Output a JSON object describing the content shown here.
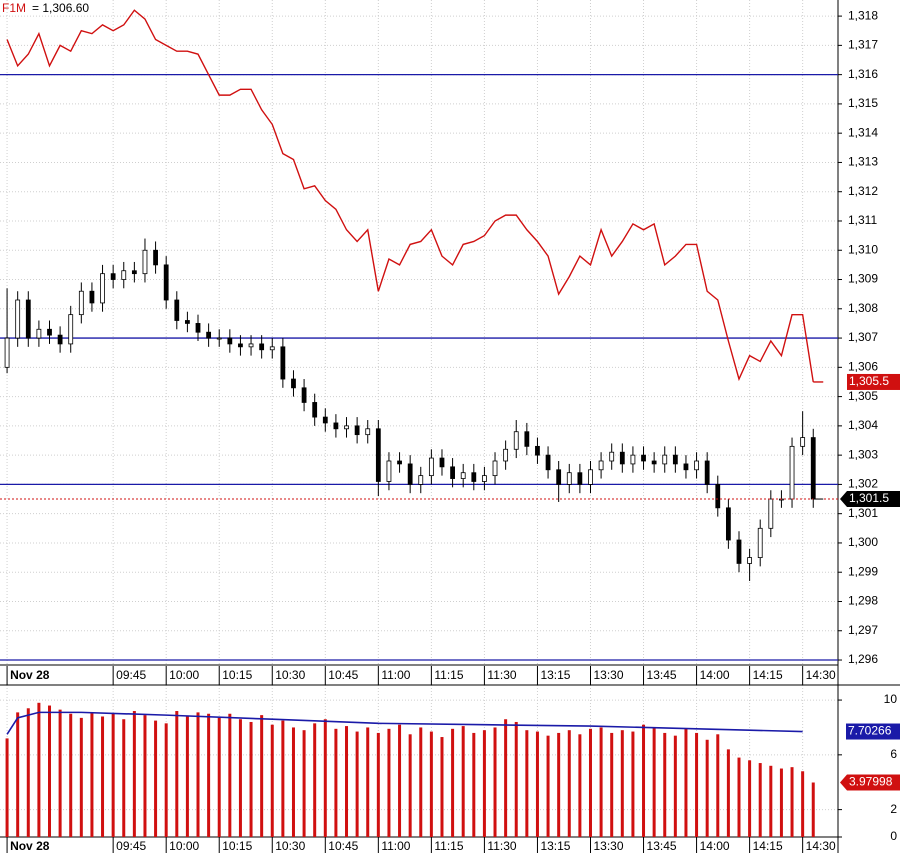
{
  "chart_data": [
    {
      "type": "candlestick",
      "legend_label": "= 1,306.60",
      "x": [
        0,
        3,
        6,
        9,
        12,
        15,
        18,
        21,
        24,
        27,
        30,
        33,
        36,
        39,
        42,
        45,
        48,
        51,
        54,
        57,
        60,
        63,
        66,
        69,
        72,
        75,
        78,
        81,
        84,
        87,
        90,
        93,
        96,
        99,
        102,
        105,
        108,
        111,
        114,
        117,
        120,
        123,
        126,
        129,
        132,
        135,
        138,
        141,
        144,
        147,
        150,
        153,
        156,
        159,
        162,
        165,
        168,
        171,
        174,
        177,
        180,
        183,
        186,
        189,
        192,
        195,
        198,
        201,
        204,
        207,
        210,
        213,
        216,
        219,
        222,
        225,
        228
      ],
      "open": [
        1306.0,
        1307.0,
        1308.3,
        1307.0,
        1307.3,
        1307.1,
        1306.8,
        1307.8,
        1308.6,
        1308.2,
        1309.2,
        1309.0,
        1309.3,
        1309.2,
        1310.0,
        1309.5,
        1308.3,
        1307.6,
        1307.5,
        1307.2,
        1307.0,
        1307.0,
        1306.8,
        1306.7,
        1306.8,
        1306.6,
        1306.7,
        1305.6,
        1305.3,
        1304.8,
        1304.3,
        1304.1,
        1303.9,
        1304.0,
        1303.7,
        1303.9,
        1302.1,
        1302.8,
        1302.7,
        1302.0,
        1302.3,
        1302.9,
        1302.6,
        1302.2,
        1302.4,
        1302.1,
        1302.3,
        1302.8,
        1303.2,
        1303.8,
        1303.3,
        1303.0,
        1302.5,
        1302.0,
        1302.4,
        1302.0,
        1302.5,
        1302.8,
        1303.1,
        1302.7,
        1303.0,
        1302.8,
        1302.7,
        1303.0,
        1302.7,
        1302.5,
        1302.8,
        1302.0,
        1301.2,
        1300.1,
        1299.3,
        1299.5,
        1300.5,
        1301.5,
        1301.5,
        1303.3,
        1303.6
      ],
      "high": [
        1308.7,
        1308.6,
        1308.6,
        1307.6,
        1307.6,
        1307.4,
        1308.1,
        1308.9,
        1308.9,
        1309.5,
        1309.5,
        1309.6,
        1309.6,
        1310.4,
        1310.3,
        1309.8,
        1308.6,
        1307.9,
        1307.8,
        1307.5,
        1307.3,
        1307.3,
        1307.1,
        1307.1,
        1307.1,
        1307.0,
        1307.0,
        1305.9,
        1305.6,
        1305.1,
        1304.6,
        1304.4,
        1304.3,
        1304.3,
        1304.2,
        1304.2,
        1303.1,
        1303.1,
        1303.0,
        1302.6,
        1303.2,
        1303.2,
        1302.9,
        1302.7,
        1302.7,
        1302.6,
        1303.1,
        1303.5,
        1304.2,
        1304.1,
        1303.6,
        1303.3,
        1302.8,
        1302.7,
        1302.7,
        1302.8,
        1303.1,
        1303.4,
        1303.4,
        1303.3,
        1303.3,
        1303.1,
        1303.3,
        1303.3,
        1303.0,
        1303.1,
        1303.1,
        1302.3,
        1301.5,
        1300.4,
        1299.8,
        1300.8,
        1301.8,
        1301.8,
        1303.6,
        1304.5,
        1303.9
      ],
      "low": [
        1305.8,
        1306.7,
        1306.7,
        1306.7,
        1306.8,
        1306.5,
        1306.5,
        1307.5,
        1307.9,
        1307.9,
        1308.7,
        1308.7,
        1308.9,
        1308.9,
        1309.2,
        1308.0,
        1307.3,
        1307.2,
        1306.9,
        1306.7,
        1306.7,
        1306.5,
        1306.4,
        1306.4,
        1306.3,
        1306.3,
        1305.3,
        1305.0,
        1304.5,
        1304.0,
        1303.8,
        1303.6,
        1303.6,
        1303.4,
        1303.4,
        1301.6,
        1301.8,
        1302.4,
        1301.7,
        1301.7,
        1302.0,
        1302.3,
        1301.9,
        1301.9,
        1301.8,
        1301.8,
        1302.0,
        1302.5,
        1302.9,
        1303.0,
        1302.7,
        1302.2,
        1301.4,
        1301.7,
        1301.7,
        1301.7,
        1302.2,
        1302.5,
        1302.4,
        1302.4,
        1302.5,
        1302.4,
        1302.4,
        1302.4,
        1302.2,
        1302.2,
        1301.7,
        1300.9,
        1299.8,
        1299.0,
        1298.7,
        1299.2,
        1300.2,
        1301.2,
        1301.2,
        1303.0,
        1301.2
      ],
      "close": [
        1307.0,
        1308.3,
        1307.0,
        1307.3,
        1307.1,
        1306.8,
        1307.8,
        1308.6,
        1308.2,
        1309.2,
        1309.0,
        1309.3,
        1309.2,
        1310.0,
        1309.5,
        1308.3,
        1307.6,
        1307.5,
        1307.2,
        1307.0,
        1307.0,
        1306.8,
        1306.7,
        1306.8,
        1306.6,
        1306.7,
        1305.6,
        1305.3,
        1304.8,
        1304.3,
        1304.1,
        1303.9,
        1304.0,
        1303.7,
        1303.9,
        1302.1,
        1302.8,
        1302.7,
        1302.0,
        1302.3,
        1302.9,
        1302.6,
        1302.2,
        1302.4,
        1302.1,
        1302.3,
        1302.8,
        1303.2,
        1303.8,
        1303.3,
        1303.0,
        1302.5,
        1302.0,
        1302.4,
        1302.0,
        1302.5,
        1302.8,
        1303.1,
        1302.7,
        1303.0,
        1302.8,
        1302.7,
        1303.0,
        1302.7,
        1302.5,
        1302.8,
        1302.0,
        1301.2,
        1300.1,
        1299.3,
        1299.5,
        1300.5,
        1301.5,
        1301.5,
        1303.3,
        1303.6,
        1301.5
      ],
      "close_last_label": "1,301.5",
      "series": [
        {
          "name": "F1M",
          "color": "#d01010",
          "last_label": "1,305.5",
          "values": [
            1317.2,
            1316.3,
            1316.7,
            1317.4,
            1316.3,
            1317.0,
            1316.8,
            1317.5,
            1317.4,
            1317.7,
            1317.5,
            1317.7,
            1318.2,
            1317.9,
            1317.2,
            1317.0,
            1316.8,
            1316.8,
            1316.7,
            1316.0,
            1315.3,
            1315.3,
            1315.5,
            1315.5,
            1314.8,
            1314.3,
            1313.3,
            1313.1,
            1312.1,
            1312.2,
            1311.7,
            1311.4,
            1310.7,
            1310.3,
            1310.7,
            1308.6,
            1309.7,
            1309.5,
            1310.2,
            1310.3,
            1310.7,
            1309.8,
            1309.5,
            1310.2,
            1310.3,
            1310.5,
            1311.0,
            1311.2,
            1311.2,
            1310.7,
            1310.3,
            1309.8,
            1308.5,
            1309.1,
            1309.8,
            1309.5,
            1310.7,
            1309.8,
            1310.3,
            1310.9,
            1310.7,
            1310.9,
            1309.5,
            1309.8,
            1310.2,
            1310.2,
            1308.6,
            1308.3,
            1306.9,
            1305.6,
            1306.4,
            1306.2,
            1306.9,
            1306.4,
            1307.8,
            1307.8,
            1305.5
          ]
        }
      ],
      "hlines": [
        1316,
        1307,
        1302,
        1296
      ],
      "hline_color": "#1a1aa8",
      "xlim": [
        -2,
        235
      ],
      "xticks": [
        {
          "value": 0,
          "label": "Nov 28"
        },
        {
          "value": 30,
          "label": "09:45"
        },
        {
          "value": 45,
          "label": "10:00"
        },
        {
          "value": 60,
          "label": "10:15"
        },
        {
          "value": 75,
          "label": "10:30"
        },
        {
          "value": 90,
          "label": "10:45"
        },
        {
          "value": 105,
          "label": "11:00"
        },
        {
          "value": 120,
          "label": "11:15"
        },
        {
          "value": 135,
          "label": "11:30"
        },
        {
          "value": 150,
          "label": "13:15"
        },
        {
          "value": 165,
          "label": "13:30"
        },
        {
          "value": 180,
          "label": "13:45"
        },
        {
          "value": 195,
          "label": "14:00"
        },
        {
          "value": 210,
          "label": "14:15"
        },
        {
          "value": 225,
          "label": "14:30"
        }
      ],
      "ylim": [
        1295.83,
        1318.55
      ],
      "yticks": [
        {
          "value": 1296,
          "label": "1,296"
        },
        {
          "value": 1297,
          "label": "1,297"
        },
        {
          "value": 1298,
          "label": "1,298"
        },
        {
          "value": 1299,
          "label": "1,299"
        },
        {
          "value": 1300,
          "label": "1,300"
        },
        {
          "value": 1301,
          "label": "1,301"
        },
        {
          "value": 1302,
          "label": "1,302"
        },
        {
          "value": 1303,
          "label": "1,303"
        },
        {
          "value": 1304,
          "label": "1,304"
        },
        {
          "value": 1305,
          "label": "1,305"
        },
        {
          "value": 1306,
          "label": "1,306"
        },
        {
          "value": 1307,
          "label": "1,307"
        },
        {
          "value": 1308,
          "label": "1,308"
        },
        {
          "value": 1309,
          "label": "1,309"
        },
        {
          "value": 1310,
          "label": "1,310"
        },
        {
          "value": 1311,
          "label": "1,311"
        },
        {
          "value": 1312,
          "label": "1,312"
        },
        {
          "value": 1313,
          "label": "1,313"
        },
        {
          "value": 1314,
          "label": "1,314"
        },
        {
          "value": 1315,
          "label": "1,315"
        },
        {
          "value": 1316,
          "label": "1,316"
        },
        {
          "value": 1317,
          "label": "1,317"
        },
        {
          "value": 1318,
          "label": "1,318"
        }
      ],
      "grid": true
    },
    {
      "type": "volume",
      "color": "#d01010",
      "values": [
        7.2,
        9.1,
        9.4,
        9.8,
        9.6,
        9.3,
        9.0,
        8.7,
        9.1,
        8.8,
        9.0,
        8.6,
        9.2,
        8.9,
        8.5,
        8.3,
        9.2,
        8.8,
        9.1,
        9.0,
        8.7,
        9.0,
        8.6,
        8.4,
        8.9,
        8.2,
        8.5,
        8.0,
        7.8,
        8.3,
        8.6,
        7.9,
        8.1,
        7.7,
        8.0,
        7.6,
        7.9,
        8.2,
        7.5,
        8.0,
        7.7,
        7.3,
        7.9,
        8.1,
        7.6,
        7.8,
        8.0,
        8.6,
        8.4,
        7.8,
        7.7,
        7.4,
        7.6,
        7.8,
        7.5,
        7.9,
        8.0,
        7.6,
        7.8,
        7.7,
        8.2,
        8.0,
        7.6,
        7.4,
        7.9,
        7.6,
        7.1,
        7.5,
        6.4,
        5.8,
        5.6,
        5.4,
        5.2,
        5.0,
        5.1,
        4.8,
        3.97998
      ],
      "average": {
        "color": "#1a1aa8",
        "x": [
          0,
          3,
          9,
          21,
          45,
          75,
          105,
          135,
          165,
          195,
          210,
          225
        ],
        "values": [
          7.5,
          8.7,
          9.1,
          9.1,
          8.9,
          8.6,
          8.3,
          8.2,
          8.1,
          7.9,
          7.8,
          7.70266
        ]
      },
      "xlim": [
        -2,
        235
      ],
      "xticks": [
        {
          "value": 0,
          "label": "Nov 28"
        },
        {
          "value": 30,
          "label": "09:45"
        },
        {
          "value": 45,
          "label": "10:00"
        },
        {
          "value": 60,
          "label": "10:15"
        },
        {
          "value": 75,
          "label": "10:30"
        },
        {
          "value": 90,
          "label": "10:45"
        },
        {
          "value": 105,
          "label": "11:00"
        },
        {
          "value": 120,
          "label": "11:15"
        },
        {
          "value": 135,
          "label": "11:30"
        },
        {
          "value": 150,
          "label": "13:15"
        },
        {
          "value": 165,
          "label": "13:30"
        },
        {
          "value": 180,
          "label": "13:45"
        },
        {
          "value": 195,
          "label": "14:00"
        },
        {
          "value": 210,
          "label": "14:15"
        },
        {
          "value": 225,
          "label": "14:30"
        }
      ],
      "ylim": [
        0,
        11.1
      ],
      "yticks": [
        0,
        2,
        6,
        10
      ],
      "grid": true
    }
  ]
}
